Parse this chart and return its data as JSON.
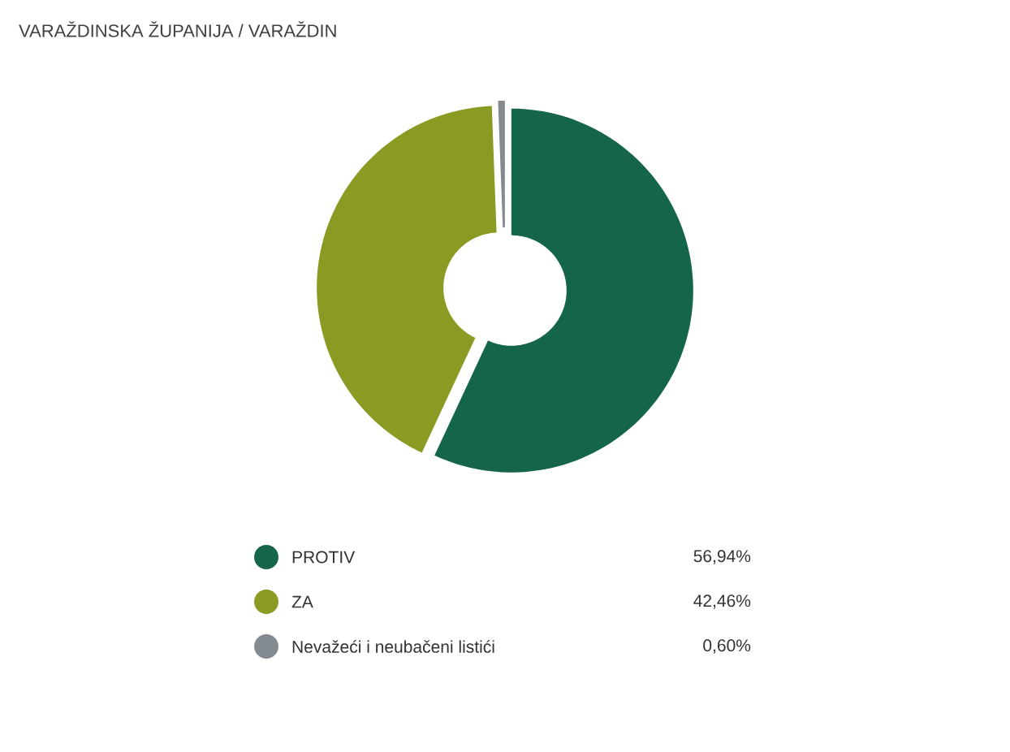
{
  "chart_data": {
    "type": "donut",
    "title": "VARAŽDINSKA ŽUPANIJA / VARAŽDIN",
    "categories": [
      "PROTIV",
      "ZA",
      "Nevažeći i neubačeni listići"
    ],
    "values": [
      56.94,
      42.46,
      0.6
    ],
    "value_labels": [
      "56,94%",
      "42,46%",
      "0,60%"
    ],
    "colors": [
      "#15654b",
      "#8a9a22",
      "#838a90"
    ],
    "legend": "bottom"
  }
}
